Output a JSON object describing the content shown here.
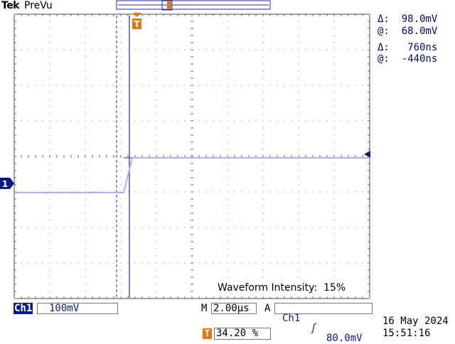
{
  "header": {
    "brand": "Tek",
    "mode": "PreVu"
  },
  "cursor_readout": {
    "amp_delta": "Δ:  98.0mV",
    "amp_at": "@:  68.0mV",
    "time_delta": "Δ:   760ns",
    "time_at": "@:  -440ns"
  },
  "screen": {
    "waveform_intensity": "Waveform Intensity:  15%"
  },
  "channel": {
    "name": "Ch1",
    "scale": "100mV",
    "marker": "1"
  },
  "timebase": {
    "prefix": "M",
    "value": "2.00µs"
  },
  "trigger": {
    "label": "A",
    "source": "Ch1",
    "slope_symbol": "ʃ",
    "level": "80.0mV",
    "position_icon": "T",
    "position": "34.20 %"
  },
  "datetime": {
    "date": "16 May 2024",
    "time": "15:51:16"
  },
  "colors": {
    "trace": "#9aa0ff",
    "cursor": "#1d2fa8",
    "trigger": "#e07a10",
    "panel": "#0a1a8c"
  }
}
